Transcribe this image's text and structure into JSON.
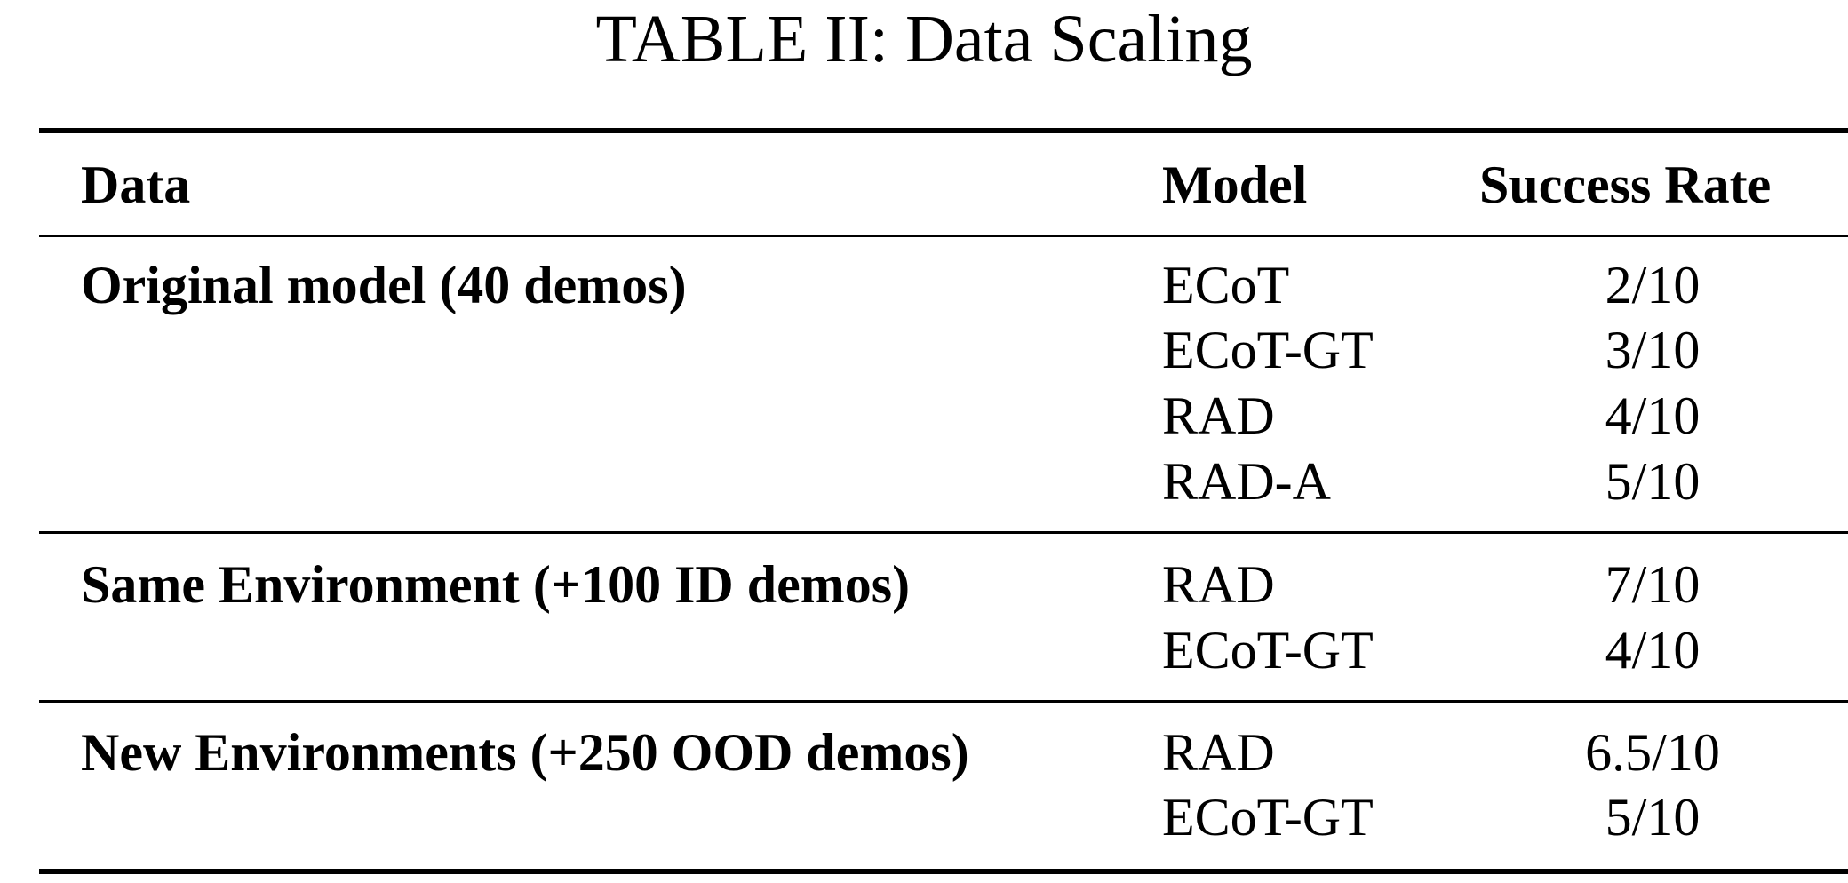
{
  "caption": "TABLE II: Data Scaling",
  "columns": {
    "data": "Data",
    "model": "Model",
    "success_rate": "Success Rate"
  },
  "groups": [
    {
      "data": "Original model (40 demos)",
      "rows": [
        {
          "model": "ECoT",
          "success_rate": "2/10"
        },
        {
          "model": "ECoT-GT",
          "success_rate": "3/10"
        },
        {
          "model": "RAD",
          "success_rate": "4/10"
        },
        {
          "model": "RAD-A",
          "success_rate": "5/10"
        }
      ]
    },
    {
      "data": "Same Environment (+100 ID demos)",
      "rows": [
        {
          "model": "RAD",
          "success_rate": "7/10"
        },
        {
          "model": "ECoT-GT",
          "success_rate": "4/10"
        }
      ]
    },
    {
      "data": "New Environments (+250 OOD demos)",
      "rows": [
        {
          "model": "RAD",
          "success_rate": "6.5/10"
        },
        {
          "model": "ECoT-GT",
          "success_rate": "5/10"
        }
      ]
    }
  ]
}
